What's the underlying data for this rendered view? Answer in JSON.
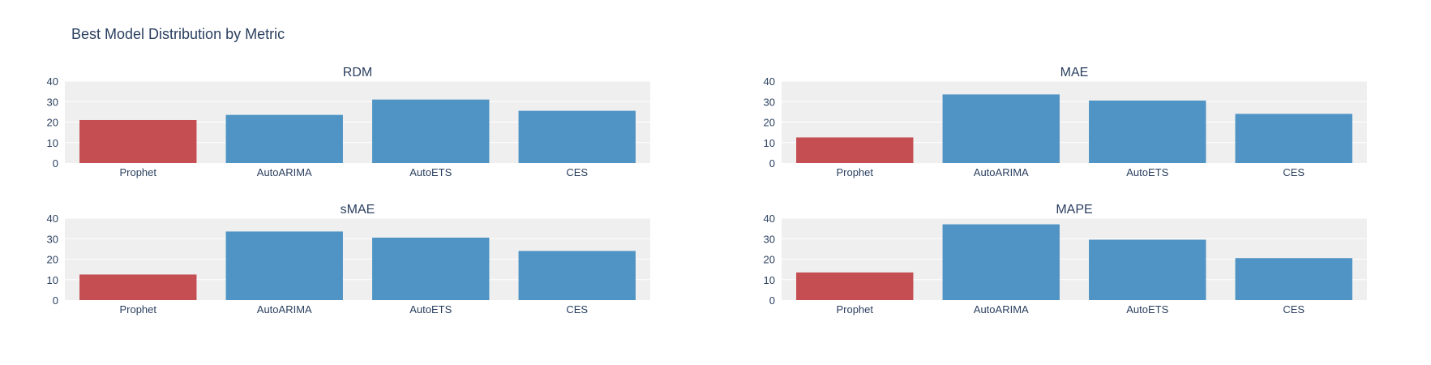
{
  "title": "Best Model Distribution by Metric",
  "colors": {
    "highlight": "#c44e52",
    "bar": "#4f94c4",
    "plot_bg": "#efefef",
    "grid": "#ffffff",
    "text": "#2a3f5f"
  },
  "chart_data": [
    {
      "type": "bar",
      "title": "RDM",
      "categories": [
        "Prophet",
        "AutoARIMA",
        "AutoETS",
        "CES"
      ],
      "values": [
        21,
        23.5,
        31,
        25.5
      ],
      "highlight_index": 0,
      "ylim": [
        0,
        40
      ],
      "yticks": [
        0,
        10,
        20,
        30,
        40
      ],
      "grid": true
    },
    {
      "type": "bar",
      "title": "MAE",
      "categories": [
        "Prophet",
        "AutoARIMA",
        "AutoETS",
        "CES"
      ],
      "values": [
        12.5,
        33.5,
        30.5,
        24
      ],
      "highlight_index": 0,
      "ylim": [
        0,
        40
      ],
      "yticks": [
        0,
        10,
        20,
        30,
        40
      ],
      "grid": true
    },
    {
      "type": "bar",
      "title": "sMAE",
      "categories": [
        "Prophet",
        "AutoARIMA",
        "AutoETS",
        "CES"
      ],
      "values": [
        12.5,
        33.5,
        30.5,
        24
      ],
      "highlight_index": 0,
      "ylim": [
        0,
        40
      ],
      "yticks": [
        0,
        10,
        20,
        30,
        40
      ],
      "grid": true
    },
    {
      "type": "bar",
      "title": "MAPE",
      "categories": [
        "Prophet",
        "AutoARIMA",
        "AutoETS",
        "CES"
      ],
      "values": [
        13.5,
        37,
        29.5,
        20.5
      ],
      "highlight_index": 0,
      "ylim": [
        0,
        40
      ],
      "yticks": [
        0,
        10,
        20,
        30,
        40
      ],
      "grid": true
    }
  ]
}
